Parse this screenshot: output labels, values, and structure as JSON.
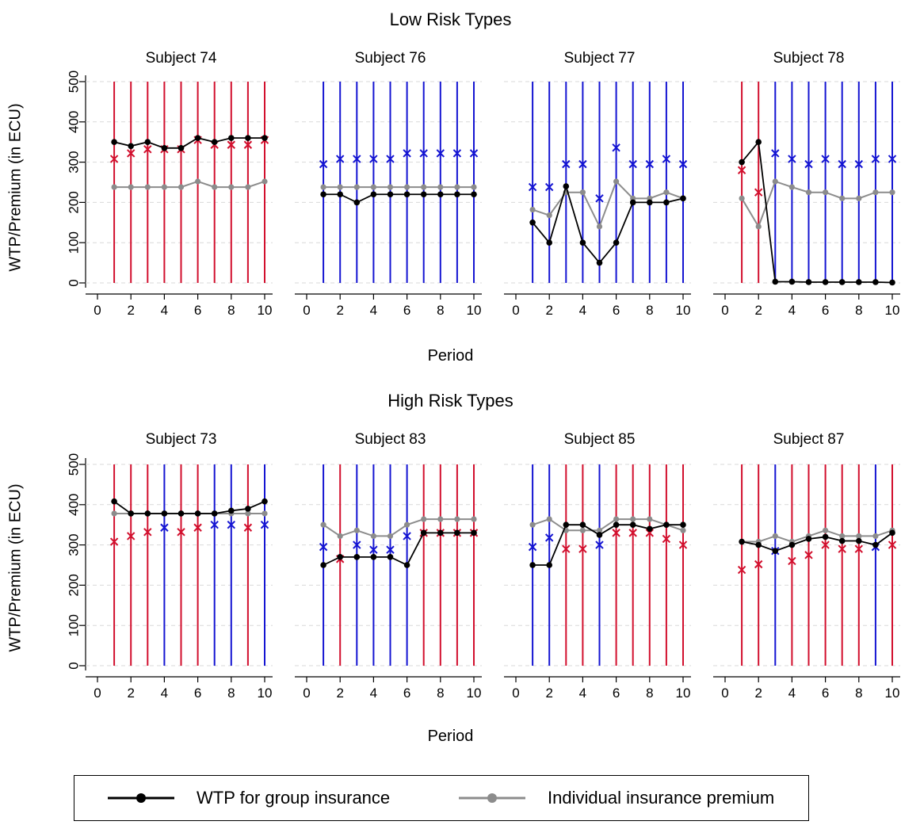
{
  "groups": [
    {
      "title": "Low Risk Types",
      "ylabel": "WTP/Premium (in ECU)",
      "xlabel": "Period",
      "panels": [
        {
          "subject": "Subject 74",
          "lines": [
            "red",
            "red",
            "red",
            "red",
            "red",
            "red",
            "red",
            "red",
            "red",
            "red"
          ],
          "wtp": [
            350,
            340,
            350,
            335,
            335,
            360,
            350,
            360,
            360,
            360
          ],
          "premium": [
            238,
            238,
            238,
            238,
            238,
            252,
            238,
            238,
            238,
            252
          ],
          "x_marks": [
            {
              "v": 308,
              "c": "red"
            },
            {
              "v": 322,
              "c": "red"
            },
            {
              "v": 332,
              "c": "red"
            },
            {
              "v": 332,
              "c": "red"
            },
            {
              "v": 332,
              "c": "red"
            },
            {
              "v": 355,
              "c": "red"
            },
            {
              "v": 343,
              "c": "red"
            },
            {
              "v": 343,
              "c": "red"
            },
            {
              "v": 343,
              "c": "red"
            },
            {
              "v": 355,
              "c": "red"
            }
          ]
        },
        {
          "subject": "Subject 76",
          "lines": [
            "blue",
            "blue",
            "blue",
            "blue",
            "blue",
            "blue",
            "blue",
            "blue",
            "blue",
            "blue"
          ],
          "wtp": [
            220,
            220,
            200,
            220,
            220,
            220,
            220,
            220,
            220,
            220
          ],
          "premium": [
            238,
            238,
            238,
            238,
            238,
            238,
            238,
            238,
            238,
            238
          ],
          "x_marks": [
            {
              "v": 295,
              "c": "blue"
            },
            {
              "v": 308,
              "c": "blue"
            },
            {
              "v": 308,
              "c": "blue"
            },
            {
              "v": 308,
              "c": "blue"
            },
            {
              "v": 308,
              "c": "blue"
            },
            {
              "v": 322,
              "c": "blue"
            },
            {
              "v": 322,
              "c": "blue"
            },
            {
              "v": 322,
              "c": "blue"
            },
            {
              "v": 322,
              "c": "blue"
            },
            {
              "v": 322,
              "c": "blue"
            }
          ]
        },
        {
          "subject": "Subject 77",
          "lines": [
            "blue",
            "blue",
            "blue",
            "blue",
            "blue",
            "blue",
            "blue",
            "blue",
            "blue",
            "blue"
          ],
          "wtp": [
            150,
            100,
            240,
            100,
            50,
            100,
            200,
            200,
            200,
            210
          ],
          "premium": [
            182,
            168,
            225,
            225,
            140,
            252,
            210,
            210,
            225,
            210
          ],
          "x_marks": [
            {
              "v": 238,
              "c": "blue"
            },
            {
              "v": 238,
              "c": "blue"
            },
            {
              "v": 295,
              "c": "blue"
            },
            {
              "v": 295,
              "c": "blue"
            },
            {
              "v": 210,
              "c": "blue"
            },
            {
              "v": 336,
              "c": "blue"
            },
            {
              "v": 295,
              "c": "blue"
            },
            {
              "v": 295,
              "c": "blue"
            },
            {
              "v": 308,
              "c": "blue"
            },
            {
              "v": 295,
              "c": "blue"
            }
          ]
        },
        {
          "subject": "Subject 78",
          "lines": [
            "red",
            "red",
            "blue",
            "blue",
            "blue",
            "blue",
            "blue",
            "blue",
            "blue",
            "blue"
          ],
          "wtp": [
            300,
            350,
            3,
            3,
            2,
            2,
            2,
            2,
            2,
            1
          ],
          "premium": [
            210,
            140,
            252,
            238,
            225,
            225,
            210,
            210,
            225,
            225
          ],
          "x_marks": [
            {
              "v": 280,
              "c": "red"
            },
            {
              "v": 225,
              "c": "red"
            },
            {
              "v": 322,
              "c": "blue"
            },
            {
              "v": 308,
              "c": "blue"
            },
            {
              "v": 295,
              "c": "blue"
            },
            {
              "v": 308,
              "c": "blue"
            },
            {
              "v": 295,
              "c": "blue"
            },
            {
              "v": 295,
              "c": "blue"
            },
            {
              "v": 308,
              "c": "blue"
            },
            {
              "v": 308,
              "c": "blue"
            }
          ]
        }
      ]
    },
    {
      "title": "High Risk Types",
      "ylabel": "WTP/Premium (in ECU)",
      "xlabel": "Period",
      "panels": [
        {
          "subject": "Subject 73",
          "lines": [
            "red",
            "red",
            "red",
            "blue",
            "red",
            "red",
            "blue",
            "blue",
            "red",
            "blue"
          ],
          "wtp": [
            408,
            378,
            378,
            378,
            378,
            378,
            378,
            385,
            390,
            408
          ],
          "premium": [
            378,
            378,
            378,
            378,
            378,
            378,
            378,
            378,
            378,
            378
          ],
          "x_marks": [
            {
              "v": 308,
              "c": "red"
            },
            {
              "v": 322,
              "c": "red"
            },
            {
              "v": 332,
              "c": "red"
            },
            {
              "v": 343,
              "c": "blue"
            },
            {
              "v": 332,
              "c": "red"
            },
            {
              "v": 343,
              "c": "red"
            },
            {
              "v": 350,
              "c": "blue"
            },
            {
              "v": 350,
              "c": "blue"
            },
            {
              "v": 343,
              "c": "red"
            },
            {
              "v": 350,
              "c": "blue"
            }
          ]
        },
        {
          "subject": "Subject 83",
          "lines": [
            "blue",
            "red",
            "blue",
            "blue",
            "blue",
            "blue",
            "red",
            "red",
            "red",
            "red"
          ],
          "wtp": [
            250,
            270,
            270,
            270,
            270,
            250,
            330,
            330,
            330,
            330
          ],
          "premium": [
            350,
            322,
            336,
            322,
            322,
            350,
            364,
            364,
            364,
            364
          ],
          "x_marks": [
            {
              "v": 295,
              "c": "blue"
            },
            {
              "v": 265,
              "c": "red"
            },
            {
              "v": 300,
              "c": "blue"
            },
            {
              "v": 288,
              "c": "blue"
            },
            {
              "v": 288,
              "c": "blue"
            },
            {
              "v": 322,
              "c": "blue"
            },
            {
              "v": 330,
              "c": "red"
            },
            {
              "v": 330,
              "c": "red"
            },
            {
              "v": 330,
              "c": "red"
            },
            {
              "v": 330,
              "c": "red"
            }
          ]
        },
        {
          "subject": "Subject 85",
          "lines": [
            "blue",
            "blue",
            "red",
            "red",
            "blue",
            "red",
            "red",
            "red",
            "red",
            "red"
          ],
          "wtp": [
            250,
            250,
            350,
            350,
            325,
            350,
            350,
            340,
            350,
            350
          ],
          "premium": [
            350,
            364,
            336,
            336,
            336,
            364,
            364,
            364,
            350,
            336
          ],
          "x_marks": [
            {
              "v": 295,
              "c": "blue"
            },
            {
              "v": 318,
              "c": "blue"
            },
            {
              "v": 290,
              "c": "red"
            },
            {
              "v": 290,
              "c": "red"
            },
            {
              "v": 300,
              "c": "blue"
            },
            {
              "v": 330,
              "c": "red"
            },
            {
              "v": 330,
              "c": "red"
            },
            {
              "v": 330,
              "c": "red"
            },
            {
              "v": 315,
              "c": "red"
            },
            {
              "v": 300,
              "c": "red"
            }
          ]
        },
        {
          "subject": "Subject 87",
          "lines": [
            "red",
            "red",
            "blue",
            "red",
            "red",
            "red",
            "red",
            "red",
            "blue",
            "red"
          ],
          "wtp": [
            308,
            300,
            285,
            300,
            315,
            320,
            310,
            310,
            300,
            330
          ],
          "premium": [
            308,
            308,
            322,
            308,
            322,
            336,
            322,
            322,
            322,
            336
          ],
          "x_marks": [
            {
              "v": 238,
              "c": "red"
            },
            {
              "v": 252,
              "c": "red"
            },
            {
              "v": 285,
              "c": "blue"
            },
            {
              "v": 260,
              "c": "red"
            },
            {
              "v": 275,
              "c": "red"
            },
            {
              "v": 300,
              "c": "red"
            },
            {
              "v": 290,
              "c": "red"
            },
            {
              "v": 290,
              "c": "red"
            },
            {
              "v": 295,
              "c": "blue"
            },
            {
              "v": 300,
              "c": "red"
            }
          ]
        }
      ]
    }
  ],
  "legend": {
    "wtp_label": "WTP for group insurance",
    "premium_label": "Individual insurance premium"
  },
  "chart_data": {
    "type": "line",
    "x": [
      1,
      2,
      3,
      4,
      5,
      6,
      7,
      8,
      9,
      10
    ],
    "xlim": [
      0,
      10
    ],
    "ylim": [
      0,
      500
    ],
    "x_ticks": [
      0,
      2,
      4,
      6,
      8,
      10
    ],
    "y_ticks": [
      0,
      100,
      200,
      300,
      400,
      500
    ],
    "grid": "horizontal dashed",
    "legend_position": "bottom"
  },
  "colors": {
    "wtp": "#000000",
    "premium": "#8c8c8c",
    "red": "#d20f2d",
    "blue": "#1414d2",
    "grid": "#d9d9d9"
  }
}
